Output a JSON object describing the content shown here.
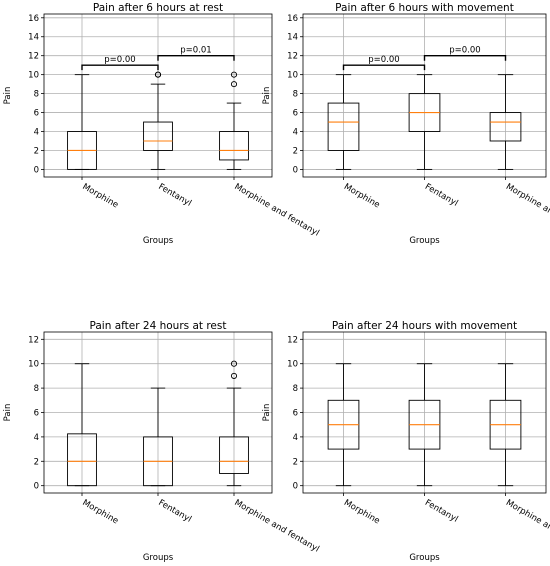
{
  "chart_data": [
    {
      "type": "boxplot",
      "title": "Pain after 6 hours at rest",
      "xlabel": "Groups",
      "ylabel": "Pain",
      "ylim": [
        -0.8,
        16.4
      ],
      "yticks": [
        0,
        2,
        4,
        6,
        8,
        10,
        12,
        14,
        16
      ],
      "grid": true,
      "categories": [
        "Morphine",
        "Fentanyl",
        "Morphine and fentanyl"
      ],
      "boxes": [
        {
          "whisker_low": 0,
          "q1": 0,
          "median": 2,
          "q3": 4,
          "whisker_high": 10,
          "outliers": []
        },
        {
          "whisker_low": 0,
          "q1": 2,
          "median": 3,
          "q3": 5,
          "whisker_high": 9,
          "outliers": [
            10,
            10
          ]
        },
        {
          "whisker_low": 0,
          "q1": 1,
          "median": 2,
          "q3": 4,
          "whisker_high": 7,
          "outliers": [
            9,
            10
          ]
        }
      ],
      "annotations": [
        {
          "text": "p=0.00",
          "between": [
            0,
            1
          ],
          "y": 11
        },
        {
          "text": "p=0.01",
          "between": [
            1,
            2
          ],
          "y": 12
        }
      ]
    },
    {
      "type": "boxplot",
      "title": "Pain after 6 hours with movement",
      "xlabel": "Groups",
      "ylabel": "Pain",
      "ylim": [
        -0.8,
        16.4
      ],
      "yticks": [
        0,
        2,
        4,
        6,
        8,
        10,
        12,
        14,
        16
      ],
      "grid": true,
      "categories": [
        "Morphine",
        "Fentanyl",
        "Morphine and fentanyl"
      ],
      "boxes": [
        {
          "whisker_low": 0,
          "q1": 2,
          "median": 5,
          "q3": 7,
          "whisker_high": 10,
          "outliers": []
        },
        {
          "whisker_low": 0,
          "q1": 4,
          "median": 6,
          "q3": 8,
          "whisker_high": 10,
          "outliers": []
        },
        {
          "whisker_low": 0,
          "q1": 3,
          "median": 5,
          "q3": 6,
          "whisker_high": 10,
          "outliers": []
        }
      ],
      "annotations": [
        {
          "text": "p=0.00",
          "between": [
            0,
            1
          ],
          "y": 11
        },
        {
          "text": "p=0.00",
          "between": [
            1,
            2
          ],
          "y": 12
        }
      ]
    },
    {
      "type": "boxplot",
      "title": "Pain after 24 hours at rest",
      "xlabel": "Groups",
      "ylabel": "Pain",
      "ylim": [
        -0.6,
        12.6
      ],
      "yticks": [
        0,
        2,
        4,
        6,
        8,
        10,
        12
      ],
      "grid": true,
      "categories": [
        "Morphine",
        "Fentanyl",
        "Morphine and fentanyl"
      ],
      "boxes": [
        {
          "whisker_low": 0,
          "q1": 0,
          "median": 2,
          "q3": 4.25,
          "whisker_high": 10,
          "outliers": []
        },
        {
          "whisker_low": 0,
          "q1": 0,
          "median": 2,
          "q3": 4,
          "whisker_high": 8,
          "outliers": []
        },
        {
          "whisker_low": 0,
          "q1": 1,
          "median": 2,
          "q3": 4,
          "whisker_high": 8,
          "outliers": [
            9,
            10
          ]
        }
      ],
      "annotations": []
    },
    {
      "type": "boxplot",
      "title": "Pain after 24 hours with movement",
      "xlabel": "Groups",
      "ylabel": "Pain",
      "ylim": [
        -0.6,
        12.6
      ],
      "yticks": [
        0,
        2,
        4,
        6,
        8,
        10,
        12
      ],
      "grid": true,
      "categories": [
        "Morphine",
        "Fentanyl",
        "Morphine and fentanyl"
      ],
      "boxes": [
        {
          "whisker_low": 0,
          "q1": 3,
          "median": 5,
          "q3": 7,
          "whisker_high": 10,
          "outliers": []
        },
        {
          "whisker_low": 0,
          "q1": 3,
          "median": 5,
          "q3": 7,
          "whisker_high": 10,
          "outliers": []
        },
        {
          "whisker_low": 0,
          "q1": 3,
          "median": 5,
          "q3": 7,
          "whisker_high": 10,
          "outliers": []
        }
      ],
      "annotations": []
    }
  ],
  "colors": {
    "box": "#000000",
    "median": "#ff7f0e",
    "grid": "#b0b0b0"
  }
}
